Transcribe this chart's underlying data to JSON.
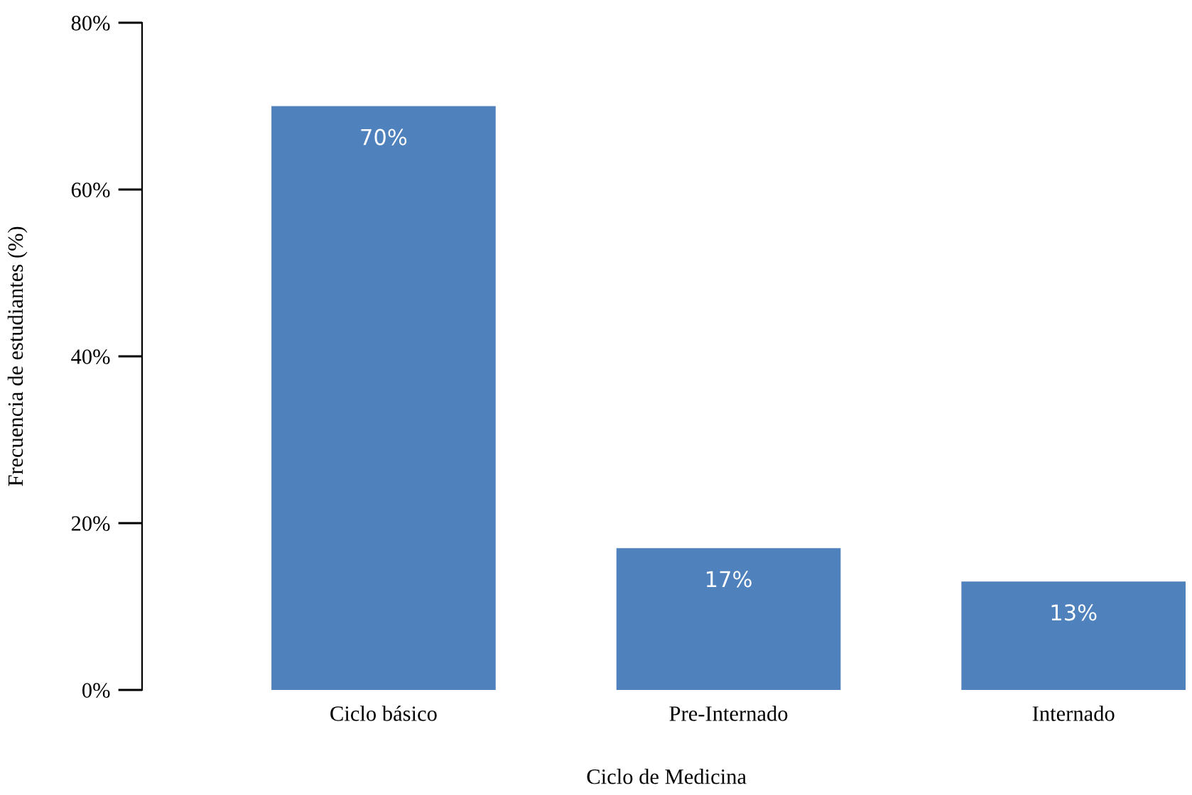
{
  "chart_data": {
    "type": "bar",
    "xlabel": "Ciclo de Medicina",
    "ylabel": "Frecuencia de estudiantes (%)",
    "categories": [
      "Ciclo básico",
      "Pre-Internado",
      "Internado"
    ],
    "values": [
      70,
      17,
      13
    ],
    "value_labels": [
      "70%",
      "17%",
      "13%"
    ],
    "color": "#4f81bd",
    "ylim": [
      0,
      80
    ],
    "yticks": [
      {
        "value": 0,
        "label": "0%"
      },
      {
        "value": 20,
        "label": "20%"
      },
      {
        "value": 40,
        "label": "40%"
      },
      {
        "value": 60,
        "label": "60%"
      },
      {
        "value": 80,
        "label": "80%"
      }
    ],
    "grid": false,
    "legend": false
  }
}
